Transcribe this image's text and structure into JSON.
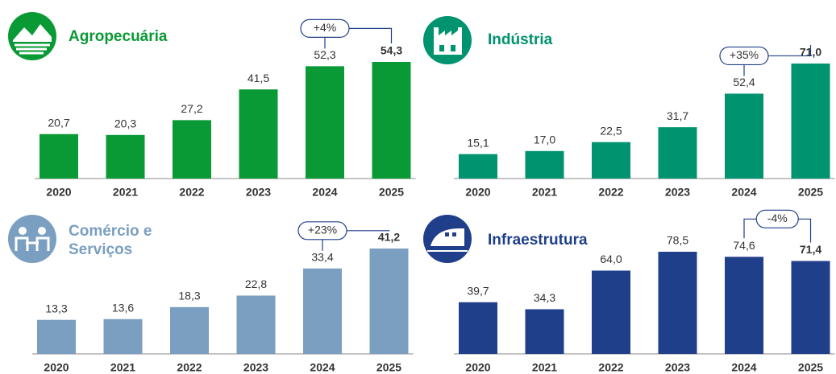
{
  "chart_data": [
    {
      "type": "bar",
      "title": "Agropecuária",
      "color": "#0a9a35",
      "categories": [
        "2020",
        "2021",
        "2022",
        "2023",
        "2024",
        "2025"
      ],
      "values": [
        20.7,
        20.3,
        27.2,
        41.5,
        52.3,
        54.3
      ],
      "value_labels": [
        "20,7",
        "20,3",
        "27,2",
        "41,5",
        "52,3",
        "54,3"
      ],
      "annotation": "+4%"
    },
    {
      "type": "bar",
      "title": "Indústria",
      "color": "#00936f",
      "categories": [
        "2020",
        "2021",
        "2022",
        "2023",
        "2024",
        "2025"
      ],
      "values": [
        15.1,
        17.0,
        22.5,
        31.7,
        52.4,
        71.0
      ],
      "value_labels": [
        "15,1",
        "17,0",
        "22,5",
        "31,7",
        "52,4",
        "71,0"
      ],
      "annotation": "+35%"
    },
    {
      "type": "bar",
      "title": "Comércio e Serviços",
      "color": "#7a9fc0",
      "categories": [
        "2020",
        "2021",
        "2022",
        "2023",
        "2024",
        "2025"
      ],
      "values": [
        13.3,
        13.6,
        18.3,
        22.8,
        33.4,
        41.2
      ],
      "value_labels": [
        "13,3",
        "13,6",
        "18,3",
        "22,8",
        "33,4",
        "41,2"
      ],
      "annotation": "+23%"
    },
    {
      "type": "bar",
      "title": "Infraestrutura",
      "color": "#1f3f8a",
      "categories": [
        "2020",
        "2021",
        "2022",
        "2023",
        "2024",
        "2025"
      ],
      "values": [
        39.7,
        34.3,
        64.0,
        78.5,
        74.6,
        71.4
      ],
      "value_labels": [
        "39,7",
        "34,3",
        "64,0",
        "78,5",
        "74,6",
        "71,4"
      ],
      "annotation": "-4%"
    }
  ]
}
